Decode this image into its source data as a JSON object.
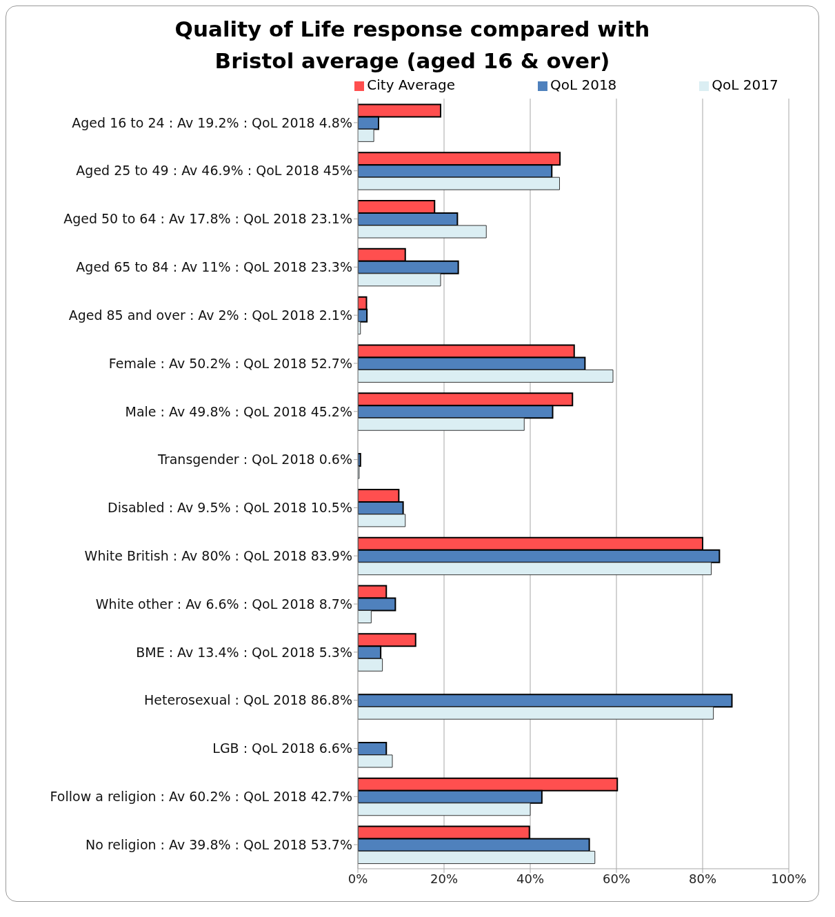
{
  "chart_data": {
    "type": "bar",
    "orientation": "horizontal",
    "title": "Quality of Life response compared with Bristol average (aged 16 & over)",
    "categories": [
      "Aged 16 to 24 : Av 19.2% : QoL 2018 4.8%",
      "Aged 25 to 49 : Av 46.9% : QoL 2018 45%",
      "Aged 50 to 64 : Av 17.8% : QoL 2018 23.1%",
      "Aged 65 to 84 : Av 11% : QoL 2018 23.3%",
      "Aged 85 and over : Av 2% : QoL 2018 2.1%",
      "Female : Av 50.2% : QoL 2018 52.7%",
      "Male : Av 49.8% : QoL 2018 45.2%",
      "Transgender : QoL 2018 0.6%",
      "Disabled : Av 9.5% : QoL 2018 10.5%",
      "White British : Av 80% : QoL 2018 83.9%",
      "White other : Av 6.6% : QoL 2018 8.7%",
      "BME : Av 13.4% : QoL 2018 5.3%",
      "Heterosexual : QoL 2018 86.8%",
      "LGB : QoL 2018 6.6%",
      "Follow a religion : Av 60.2% : QoL 2018 42.7%",
      "No religion : Av 39.8% : QoL 2018 53.7%"
    ],
    "series": [
      {
        "name": "City Average",
        "color": "#ff4f4f",
        "values": [
          19.2,
          46.9,
          17.8,
          11,
          2,
          50.2,
          49.8,
          null,
          9.5,
          80,
          6.6,
          13.4,
          null,
          null,
          60.2,
          39.8
        ]
      },
      {
        "name": "QoL 2018",
        "color": "#4f81bd",
        "values": [
          4.8,
          45,
          23.1,
          23.3,
          2.1,
          52.7,
          45.2,
          0.6,
          10.5,
          83.9,
          8.7,
          5.3,
          86.8,
          6.6,
          42.7,
          53.7
        ]
      },
      {
        "name": "QoL 2017",
        "color": "#dbeef3",
        "values": [
          3.7,
          46.8,
          29.8,
          19.2,
          0.6,
          59.2,
          38.6,
          0.3,
          11,
          82,
          3.1,
          5.7,
          82.5,
          8,
          40,
          55
        ]
      }
    ],
    "xlim": [
      0,
      100
    ],
    "xticks": [
      {
        "value": 0,
        "label": "0%"
      },
      {
        "value": 20,
        "label": "20%"
      },
      {
        "value": 40,
        "label": "40%"
      },
      {
        "value": 60,
        "label": "60%"
      },
      {
        "value": 80,
        "label": "80%"
      },
      {
        "value": 100,
        "label": "100%"
      }
    ],
    "grid": "x",
    "legend": "top"
  }
}
